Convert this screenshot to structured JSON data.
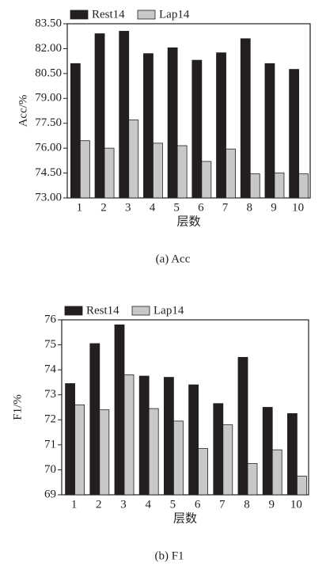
{
  "chart_data": [
    {
      "type": "bar",
      "caption": "(a) Acc",
      "xlabel": "层数",
      "ylabel": "Acc/%",
      "categories": [
        "1",
        "2",
        "3",
        "4",
        "5",
        "6",
        "7",
        "8",
        "9",
        "10"
      ],
      "series": [
        {
          "name": "Rest14",
          "color": "#231f20",
          "values": [
            81.1,
            82.9,
            83.05,
            81.7,
            82.05,
            81.3,
            81.75,
            82.6,
            81.1,
            80.75
          ]
        },
        {
          "name": "Lap14",
          "color": "#c8c8c8",
          "values": [
            76.45,
            76.0,
            77.7,
            76.3,
            76.15,
            75.2,
            75.95,
            74.45,
            74.5,
            74.45
          ]
        }
      ],
      "ylim": [
        73,
        83.5
      ],
      "yticks": [
        {
          "value": 73,
          "label": "73.00"
        },
        {
          "value": 74.5,
          "label": "74.50"
        },
        {
          "value": 76,
          "label": "76.00"
        },
        {
          "value": 77.5,
          "label": "77.50"
        },
        {
          "value": 79,
          "label": "79.00"
        },
        {
          "value": 80.5,
          "label": "80.50"
        },
        {
          "value": 82,
          "label": "82.00"
        },
        {
          "value": 83.5,
          "label": "83.50"
        }
      ]
    },
    {
      "type": "bar",
      "caption": "(b) F1",
      "xlabel": "层数",
      "ylabel": "F1/%",
      "categories": [
        "1",
        "2",
        "3",
        "4",
        "5",
        "6",
        "7",
        "8",
        "9",
        "10"
      ],
      "series": [
        {
          "name": "Rest14",
          "color": "#231f20",
          "values": [
            73.45,
            75.05,
            75.8,
            73.75,
            73.7,
            73.4,
            72.65,
            74.5,
            72.5,
            72.25
          ]
        },
        {
          "name": "Lap14",
          "color": "#c8c8c8",
          "values": [
            72.6,
            72.4,
            73.8,
            72.45,
            71.95,
            70.85,
            71.8,
            70.25,
            70.8,
            69.75
          ]
        }
      ],
      "ylim": [
        69,
        76
      ],
      "yticks": [
        69,
        70,
        71,
        72,
        73,
        74,
        75,
        76
      ]
    }
  ]
}
